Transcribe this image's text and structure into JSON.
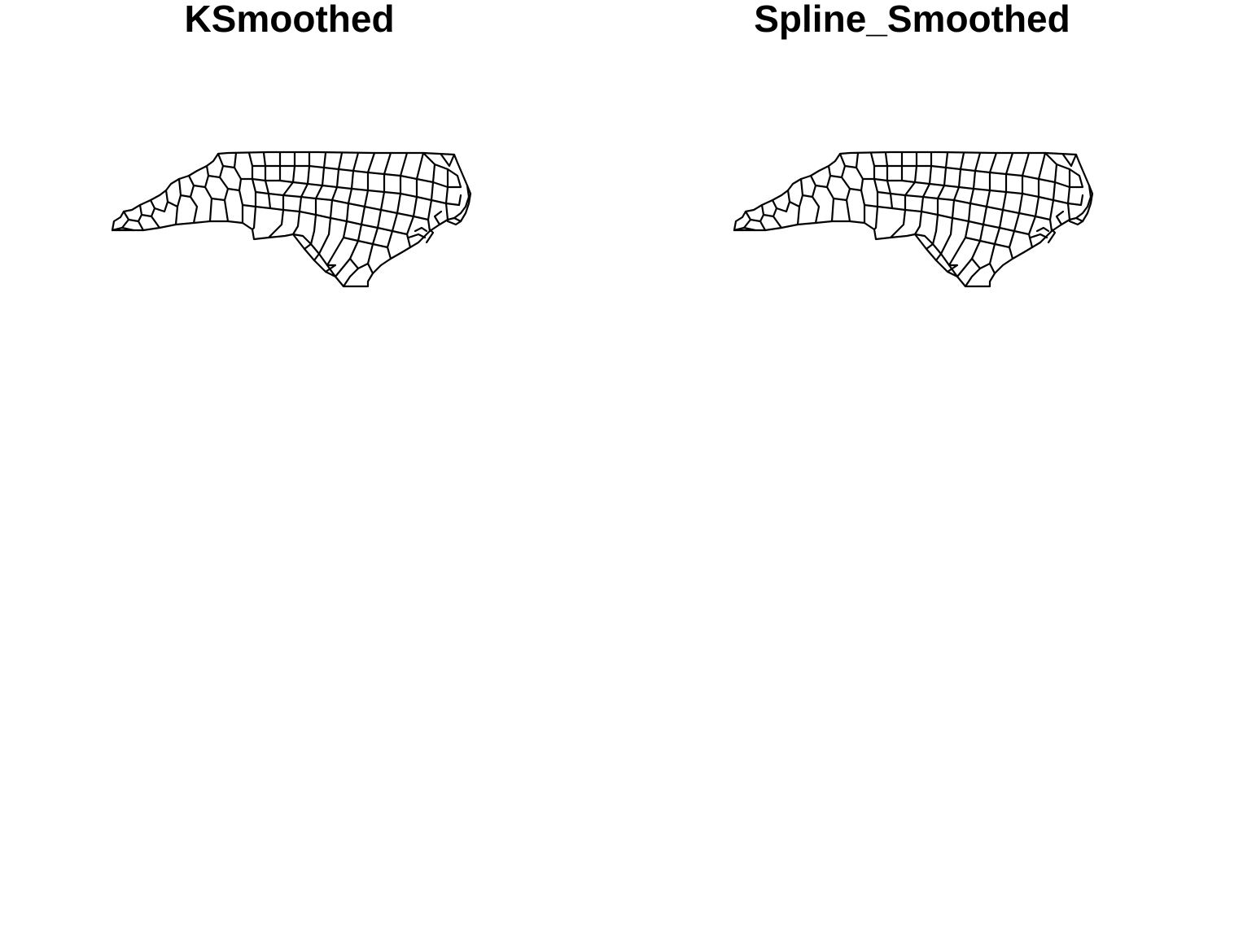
{
  "panels": [
    {
      "title": "KSmoothed",
      "map": {
        "region": "north-carolina-counties",
        "outline_color": "#000000",
        "fill_color": "#ffffff"
      }
    },
    {
      "title": "Spline_Smoothed",
      "map": {
        "region": "north-carolina-counties",
        "outline_color": "#000000",
        "fill_color": "#ffffff"
      }
    }
  ]
}
